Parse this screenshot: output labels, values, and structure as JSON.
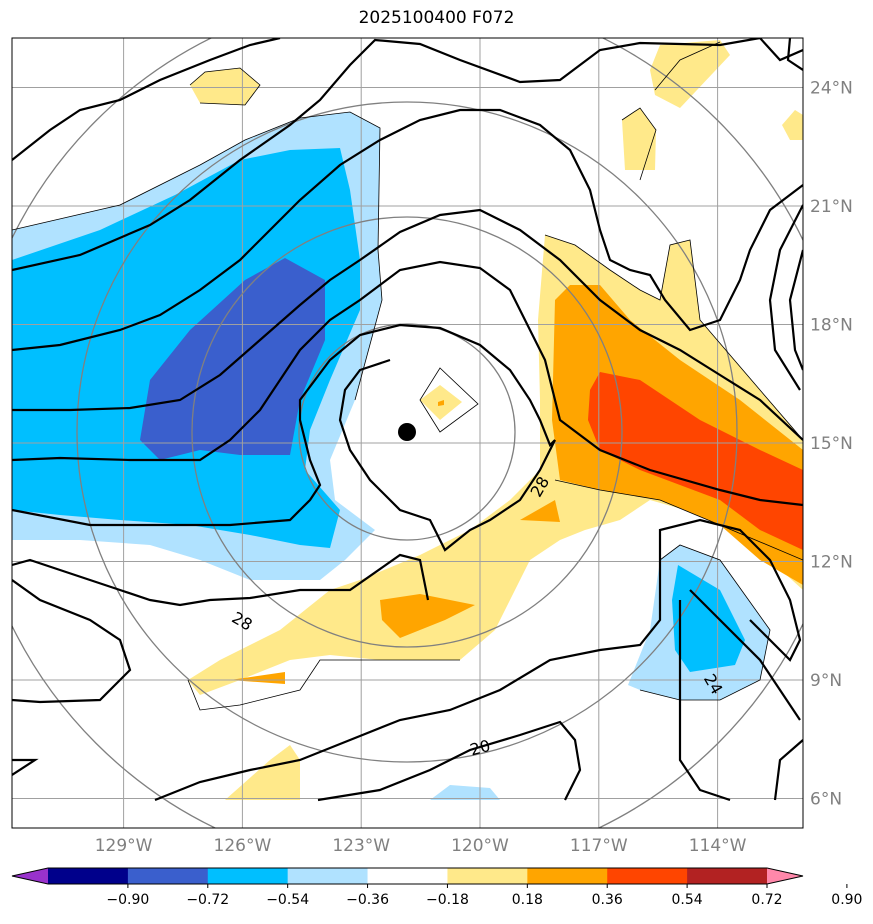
{
  "title": "2025100400 F072",
  "lat_ticks": [
    {
      "value": 24,
      "label": "24°N"
    },
    {
      "value": 21,
      "label": "21°N"
    },
    {
      "value": 18,
      "label": "18°N"
    },
    {
      "value": 15,
      "label": "15°N"
    },
    {
      "value": 12,
      "label": "12°N"
    },
    {
      "value": 9,
      "label": "9°N"
    },
    {
      "value": 6,
      "label": "6°N"
    }
  ],
  "lon_ticks": [
    {
      "value": -129,
      "label": "129°W"
    },
    {
      "value": -126,
      "label": "126°W"
    },
    {
      "value": -123,
      "label": "123°W"
    },
    {
      "value": -120,
      "label": "120°W"
    },
    {
      "value": -117,
      "label": "117°W"
    },
    {
      "value": -114,
      "label": "114°W"
    }
  ],
  "contour_labels": [
    {
      "text": "28",
      "lon": -118.5,
      "lat": 13.9,
      "rotate": -60
    },
    {
      "text": "28",
      "lon": -126.0,
      "lat": 10.5,
      "rotate": 30
    },
    {
      "text": "20",
      "lon": -120.0,
      "lat": 7.3,
      "rotate": -15
    },
    {
      "text": "24",
      "lon": -114.1,
      "lat": 8.9,
      "rotate": 60
    }
  ],
  "storm_center": {
    "lon": -121.8,
    "lat": 15.2
  },
  "colorbar": {
    "colors": [
      "#9932cc",
      "#00008b",
      "#3a5fcd",
      "#00bfff",
      "#b0e2ff",
      "#ffffff",
      "#ffe98a",
      "#ffa500",
      "#ff4500",
      "#b22222",
      "#ff88aa"
    ],
    "tick_labels": [
      "−0.90",
      "−0.72",
      "−0.54",
      "−0.36",
      "−0.18",
      "0.18",
      "0.36",
      "0.54",
      "0.72",
      "0.90"
    ]
  },
  "colors": {
    "grid": "#a0a0a0",
    "thick_contour": "#000000",
    "ring": "#808080"
  }
}
